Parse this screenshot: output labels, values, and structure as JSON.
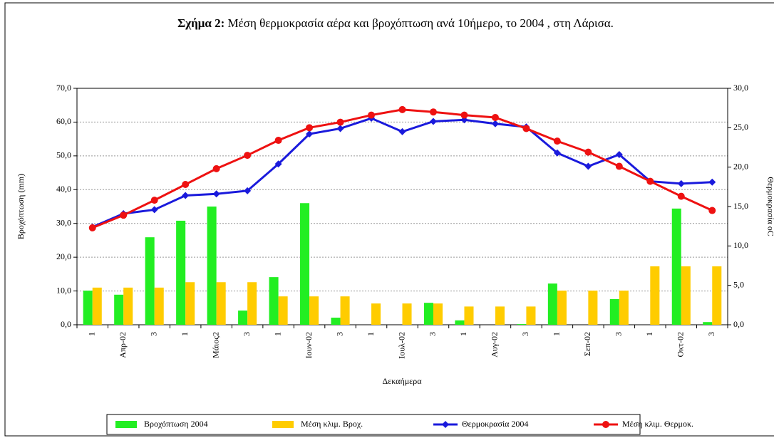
{
  "chart_data": {
    "type": "bar-line",
    "title_prefix": "Σχήμα 2:",
    "title": "Μέση θερμοκρασία αέρα και βροχόπτωση ανά 10ήμερο, το 2004 , στη Λάρισα.",
    "y_label": "Βροχόπτωση (mm)",
    "y2_label": "Θερμοκρασία oC",
    "x_label": "Δεκαήμερα",
    "categories": [
      "1",
      "Απρ-02",
      "3",
      "1",
      "Μάιος2",
      "3",
      "1",
      "Ιουν-02",
      "3",
      "1",
      "Ιουλ-02",
      "3",
      "1",
      "Αυγ-02",
      "3",
      "1",
      "Σεπ-02",
      "3",
      "1",
      "Οκτ-02",
      "3"
    ],
    "series": [
      {
        "name": "Βροχόπτωση 2004",
        "color": "#22ee22",
        "kind": "bar",
        "values": [
          10.1,
          8.9,
          25.9,
          30.8,
          35.0,
          4.2,
          14.1,
          36.0,
          2.1,
          0,
          0,
          6.5,
          1.3,
          0,
          0.2,
          12.2,
          0,
          7.6,
          0,
          34.4,
          0.8
        ]
      },
      {
        "name": "Μέση κλιμ. Βροχ.",
        "color": "#ffcc00",
        "kind": "bar",
        "values": [
          11.0,
          11.0,
          11.0,
          12.6,
          12.6,
          12.6,
          8.4,
          8.4,
          8.4,
          6.3,
          6.3,
          6.3,
          5.4,
          5.4,
          5.4,
          10.1,
          10.1,
          10.1,
          17.3,
          17.3,
          17.3
        ]
      },
      {
        "name": "Θερμοκρασία 2004",
        "color": "#1a1adc",
        "kind": "line",
        "marker": "diamond",
        "axis": "y2",
        "values": [
          12.4,
          14.1,
          14.6,
          16.4,
          16.6,
          17.0,
          20.4,
          24.2,
          24.9,
          26.2,
          24.5,
          25.8,
          26.0,
          25.5,
          25.1,
          21.8,
          20.1,
          21.6,
          18.2,
          17.9,
          18.1
        ]
      },
      {
        "name": "Μέση κλιμ. Θερμοκ.",
        "color": "#ee1111",
        "kind": "line",
        "marker": "circle",
        "axis": "y2",
        "values": [
          12.3,
          13.9,
          15.8,
          17.8,
          19.8,
          21.5,
          23.4,
          25.0,
          25.7,
          26.6,
          27.3,
          27.0,
          26.6,
          26.3,
          24.9,
          23.3,
          21.9,
          20.1,
          18.2,
          16.3,
          14.5
        ]
      }
    ],
    "ylim": [
      0,
      70
    ],
    "yticks": [
      {
        "value": 0,
        "label": "0,0"
      },
      {
        "value": 10,
        "label": "10,0"
      },
      {
        "value": 20,
        "label": "20,0"
      },
      {
        "value": 30,
        "label": "30,0"
      },
      {
        "value": 40,
        "label": "40,0"
      },
      {
        "value": 50,
        "label": "50,0"
      },
      {
        "value": 60,
        "label": "60,0"
      },
      {
        "value": 70,
        "label": "70,0"
      }
    ],
    "y2lim": [
      0,
      30
    ],
    "y2ticks": [
      {
        "value": 0,
        "label": "0,0"
      },
      {
        "value": 5,
        "label": "5,0"
      },
      {
        "value": 10,
        "label": "10,0"
      },
      {
        "value": 15,
        "label": "15,0"
      },
      {
        "value": 20,
        "label": "20,0"
      },
      {
        "value": 25,
        "label": "25,0"
      },
      {
        "value": 30,
        "label": "30,0"
      }
    ],
    "grid": true,
    "legend": "bottom"
  }
}
